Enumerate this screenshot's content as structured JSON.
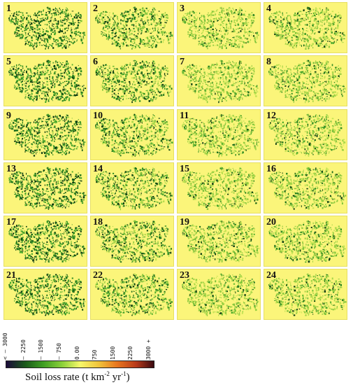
{
  "panels": [
    {
      "label": "1",
      "intensity": 0.95
    },
    {
      "label": "2",
      "intensity": 0.55
    },
    {
      "label": "3",
      "intensity": 0.25
    },
    {
      "label": "4",
      "intensity": 0.3
    },
    {
      "label": "5",
      "intensity": 0.95
    },
    {
      "label": "6",
      "intensity": 0.6
    },
    {
      "label": "7",
      "intensity": 0.22
    },
    {
      "label": "8",
      "intensity": 0.28
    },
    {
      "label": "9",
      "intensity": 0.92
    },
    {
      "label": "10",
      "intensity": 0.5
    },
    {
      "label": "11",
      "intensity": 0.25
    },
    {
      "label": "12",
      "intensity": 0.28
    },
    {
      "label": "13",
      "intensity": 0.93
    },
    {
      "label": "14",
      "intensity": 0.58
    },
    {
      "label": "15",
      "intensity": 0.24
    },
    {
      "label": "16",
      "intensity": 0.27
    },
    {
      "label": "17",
      "intensity": 0.93
    },
    {
      "label": "18",
      "intensity": 0.55
    },
    {
      "label": "19",
      "intensity": 0.25
    },
    {
      "label": "20",
      "intensity": 0.27
    },
    {
      "label": "21",
      "intensity": 0.92
    },
    {
      "label": "22",
      "intensity": 0.55
    },
    {
      "label": "23",
      "intensity": 0.22
    },
    {
      "label": "24",
      "intensity": 0.25
    }
  ],
  "legend": {
    "ticks": [
      "< – 3000",
      "– 2250",
      "– 1500",
      "– 750",
      "0.00",
      "750",
      "1500",
      "2250",
      "3000 +"
    ],
    "title": "Soil loss rate (t km",
    "title_sup1": "-2",
    "title_mid": " yr",
    "title_sup2": "-1",
    "title_end": ")",
    "colors": [
      "#1b0a3a",
      "#1a5a1a",
      "#3e9e22",
      "#8cd13a",
      "#f6f86a",
      "#f0c23a",
      "#e8761e",
      "#b83a1a",
      "#3a0a10"
    ]
  }
}
